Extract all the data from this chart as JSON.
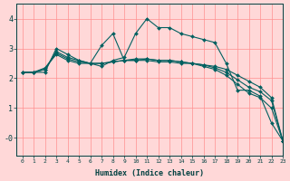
{
  "xlabel": "Humidex (Indice chaleur)",
  "background_color": "#ffd8d8",
  "grid_color": "#ff9090",
  "line_color": "#006060",
  "axes_color": "#004040",
  "xlim": [
    -0.5,
    23
  ],
  "ylim": [
    -0.6,
    4.5
  ],
  "xticks": [
    0,
    1,
    2,
    3,
    4,
    5,
    6,
    7,
    8,
    9,
    10,
    11,
    12,
    13,
    14,
    15,
    16,
    17,
    18,
    19,
    20,
    21,
    22,
    23
  ],
  "yticks": [
    0,
    1,
    2,
    3,
    4
  ],
  "ytick_labels": [
    "-0",
    "1",
    "2",
    "3",
    "4"
  ],
  "series": [
    [
      2.2,
      2.2,
      2.2,
      3.0,
      2.8,
      2.6,
      2.5,
      2.4,
      2.6,
      2.7,
      3.5,
      4.0,
      3.7,
      3.7,
      3.5,
      3.4,
      3.3,
      3.2,
      2.5,
      1.6,
      1.6,
      1.4,
      0.5,
      -0.1
    ],
    [
      2.2,
      2.2,
      2.3,
      2.9,
      2.7,
      2.6,
      2.5,
      2.5,
      2.55,
      2.6,
      2.6,
      2.6,
      2.55,
      2.55,
      2.5,
      2.5,
      2.45,
      2.4,
      2.3,
      2.1,
      1.9,
      1.7,
      1.35,
      -0.1
    ],
    [
      2.2,
      2.2,
      2.3,
      2.85,
      2.65,
      2.55,
      2.5,
      2.5,
      2.55,
      2.6,
      2.65,
      2.65,
      2.6,
      2.6,
      2.55,
      2.5,
      2.45,
      2.35,
      2.2,
      1.95,
      1.7,
      1.55,
      1.25,
      -0.1
    ],
    [
      2.2,
      2.2,
      2.35,
      2.8,
      2.6,
      2.5,
      2.5,
      3.1,
      3.5,
      2.6,
      2.6,
      2.65,
      2.6,
      2.6,
      2.55,
      2.5,
      2.4,
      2.3,
      2.1,
      1.8,
      1.5,
      1.35,
      1.0,
      -0.1
    ]
  ]
}
